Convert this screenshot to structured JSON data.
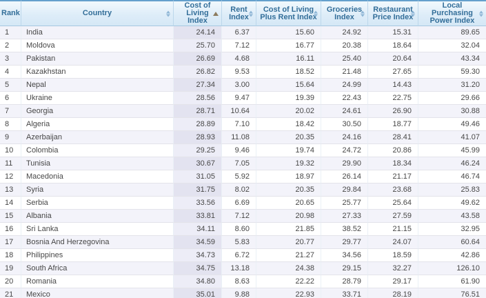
{
  "table": {
    "columns": [
      {
        "key": "rank",
        "label": "Rank",
        "sort": "none",
        "align": "left"
      },
      {
        "key": "country",
        "label": "Country",
        "sort": "both",
        "align": "left"
      },
      {
        "key": "cost_of_living_index",
        "label": "Cost of\nLiving\nIndex",
        "sort": "asc",
        "align": "right",
        "highlight": true
      },
      {
        "key": "rent_index",
        "label": "Rent\nIndex",
        "sort": "both",
        "align": "right"
      },
      {
        "key": "cost_of_living_plus_rent_index",
        "label": "Cost of Living\nPlus Rent Index",
        "sort": "both",
        "align": "right"
      },
      {
        "key": "groceries_index",
        "label": "Groceries\nIndex",
        "sort": "both",
        "align": "right"
      },
      {
        "key": "restaurant_price_index",
        "label": "Restaurant\nPrice Index",
        "sort": "both",
        "align": "right"
      },
      {
        "key": "local_purchasing_power_index",
        "label": "Local\nPurchasing\nPower Index",
        "sort": "both",
        "align": "right"
      }
    ],
    "rows": [
      {
        "rank": "1",
        "country": "India",
        "cost_of_living_index": "24.14",
        "rent_index": "6.37",
        "cost_of_living_plus_rent_index": "15.60",
        "groceries_index": "24.92",
        "restaurant_price_index": "15.31",
        "local_purchasing_power_index": "89.65"
      },
      {
        "rank": "2",
        "country": "Moldova",
        "cost_of_living_index": "25.70",
        "rent_index": "7.12",
        "cost_of_living_plus_rent_index": "16.77",
        "groceries_index": "20.38",
        "restaurant_price_index": "18.64",
        "local_purchasing_power_index": "32.04"
      },
      {
        "rank": "3",
        "country": "Pakistan",
        "cost_of_living_index": "26.69",
        "rent_index": "4.68",
        "cost_of_living_plus_rent_index": "16.11",
        "groceries_index": "25.40",
        "restaurant_price_index": "20.64",
        "local_purchasing_power_index": "43.34"
      },
      {
        "rank": "4",
        "country": "Kazakhstan",
        "cost_of_living_index": "26.82",
        "rent_index": "9.53",
        "cost_of_living_plus_rent_index": "18.52",
        "groceries_index": "21.48",
        "restaurant_price_index": "27.65",
        "local_purchasing_power_index": "59.30"
      },
      {
        "rank": "5",
        "country": "Nepal",
        "cost_of_living_index": "27.34",
        "rent_index": "3.00",
        "cost_of_living_plus_rent_index": "15.64",
        "groceries_index": "24.99",
        "restaurant_price_index": "14.43",
        "local_purchasing_power_index": "31.20"
      },
      {
        "rank": "6",
        "country": "Ukraine",
        "cost_of_living_index": "28.56",
        "rent_index": "9.47",
        "cost_of_living_plus_rent_index": "19.39",
        "groceries_index": "22.43",
        "restaurant_price_index": "22.75",
        "local_purchasing_power_index": "29.66"
      },
      {
        "rank": "7",
        "country": "Georgia",
        "cost_of_living_index": "28.71",
        "rent_index": "10.64",
        "cost_of_living_plus_rent_index": "20.02",
        "groceries_index": "24.61",
        "restaurant_price_index": "26.90",
        "local_purchasing_power_index": "30.88"
      },
      {
        "rank": "8",
        "country": "Algeria",
        "cost_of_living_index": "28.89",
        "rent_index": "7.10",
        "cost_of_living_plus_rent_index": "18.42",
        "groceries_index": "30.50",
        "restaurant_price_index": "18.77",
        "local_purchasing_power_index": "49.46"
      },
      {
        "rank": "9",
        "country": "Azerbaijan",
        "cost_of_living_index": "28.93",
        "rent_index": "11.08",
        "cost_of_living_plus_rent_index": "20.35",
        "groceries_index": "24.16",
        "restaurant_price_index": "28.41",
        "local_purchasing_power_index": "41.07"
      },
      {
        "rank": "10",
        "country": "Colombia",
        "cost_of_living_index": "29.25",
        "rent_index": "9.46",
        "cost_of_living_plus_rent_index": "19.74",
        "groceries_index": "24.72",
        "restaurant_price_index": "20.86",
        "local_purchasing_power_index": "45.99"
      },
      {
        "rank": "11",
        "country": "Tunisia",
        "cost_of_living_index": "30.67",
        "rent_index": "7.05",
        "cost_of_living_plus_rent_index": "19.32",
        "groceries_index": "29.90",
        "restaurant_price_index": "18.34",
        "local_purchasing_power_index": "46.24"
      },
      {
        "rank": "12",
        "country": "Macedonia",
        "cost_of_living_index": "31.05",
        "rent_index": "5.92",
        "cost_of_living_plus_rent_index": "18.97",
        "groceries_index": "26.14",
        "restaurant_price_index": "21.17",
        "local_purchasing_power_index": "46.74"
      },
      {
        "rank": "13",
        "country": "Syria",
        "cost_of_living_index": "31.75",
        "rent_index": "8.02",
        "cost_of_living_plus_rent_index": "20.35",
        "groceries_index": "29.84",
        "restaurant_price_index": "23.68",
        "local_purchasing_power_index": "25.83"
      },
      {
        "rank": "14",
        "country": "Serbia",
        "cost_of_living_index": "33.56",
        "rent_index": "6.69",
        "cost_of_living_plus_rent_index": "20.65",
        "groceries_index": "25.77",
        "restaurant_price_index": "25.64",
        "local_purchasing_power_index": "49.62"
      },
      {
        "rank": "15",
        "country": "Albania",
        "cost_of_living_index": "33.81",
        "rent_index": "7.12",
        "cost_of_living_plus_rent_index": "20.98",
        "groceries_index": "27.33",
        "restaurant_price_index": "27.59",
        "local_purchasing_power_index": "43.58"
      },
      {
        "rank": "16",
        "country": "Sri Lanka",
        "cost_of_living_index": "34.11",
        "rent_index": "8.60",
        "cost_of_living_plus_rent_index": "21.85",
        "groceries_index": "38.52",
        "restaurant_price_index": "21.15",
        "local_purchasing_power_index": "32.95"
      },
      {
        "rank": "17",
        "country": "Bosnia And Herzegovina",
        "cost_of_living_index": "34.59",
        "rent_index": "5.83",
        "cost_of_living_plus_rent_index": "20.77",
        "groceries_index": "29.77",
        "restaurant_price_index": "24.07",
        "local_purchasing_power_index": "60.64"
      },
      {
        "rank": "18",
        "country": "Philippines",
        "cost_of_living_index": "34.73",
        "rent_index": "6.72",
        "cost_of_living_plus_rent_index": "21.27",
        "groceries_index": "34.56",
        "restaurant_price_index": "18.59",
        "local_purchasing_power_index": "42.86"
      },
      {
        "rank": "19",
        "country": "South Africa",
        "cost_of_living_index": "34.75",
        "rent_index": "13.18",
        "cost_of_living_plus_rent_index": "24.38",
        "groceries_index": "29.15",
        "restaurant_price_index": "32.27",
        "local_purchasing_power_index": "126.10"
      },
      {
        "rank": "20",
        "country": "Romania",
        "cost_of_living_index": "34.80",
        "rent_index": "8.63",
        "cost_of_living_plus_rent_index": "22.22",
        "groceries_index": "28.79",
        "restaurant_price_index": "29.17",
        "local_purchasing_power_index": "61.90"
      },
      {
        "rank": "21",
        "country": "Mexico",
        "cost_of_living_index": "35.01",
        "rent_index": "9.88",
        "cost_of_living_plus_rent_index": "22.93",
        "groceries_index": "33.71",
        "restaurant_price_index": "28.19",
        "local_purchasing_power_index": "76.51"
      }
    ]
  },
  "colors": {
    "header_text": "#336e99",
    "header_bg_top": "#f2f9fd",
    "header_bg_bottom": "#d5e8f6",
    "header_top_border": "#64a0cc",
    "sorted_column_odd": "#e3e3f0",
    "sorted_column_even": "#ededf7",
    "row_odd": "#f3f3fa",
    "row_even": "#ffffff",
    "sort_active_arrow": "#8c7b5e",
    "sort_inactive_arrow": "#8fb6d6"
  }
}
